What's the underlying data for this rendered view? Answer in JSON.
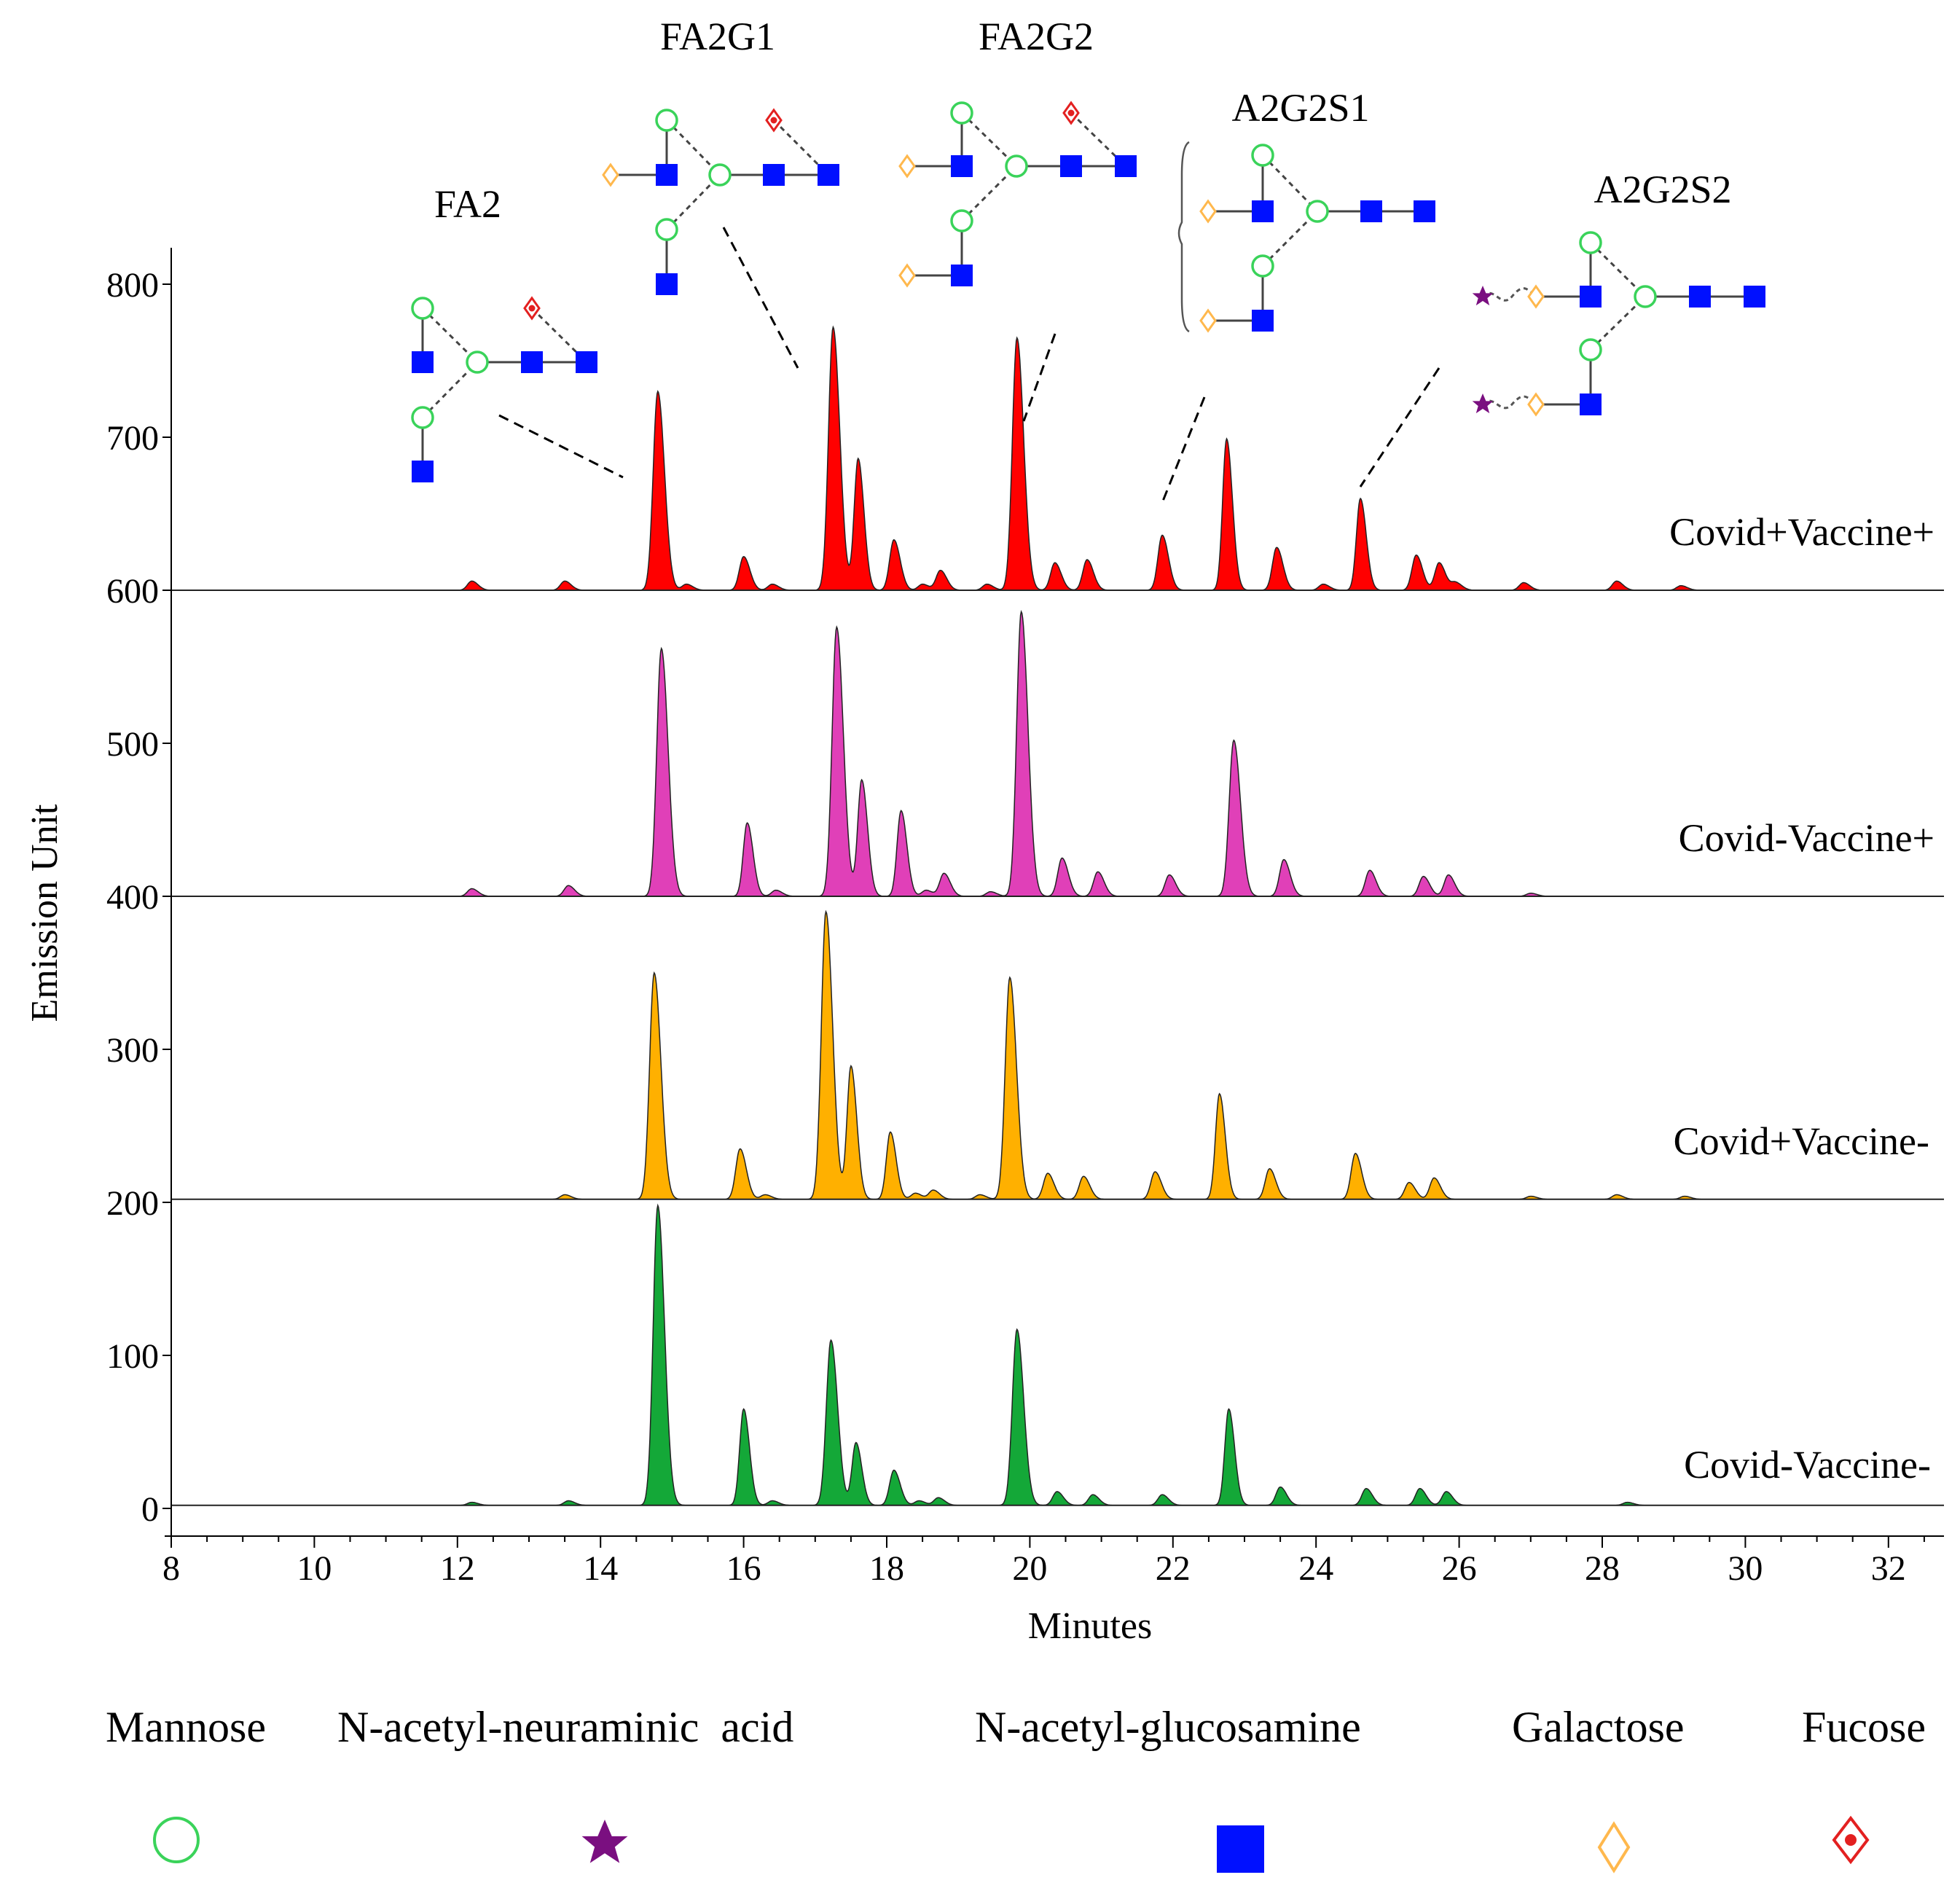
{
  "chart_data": {
    "type": "line",
    "subtype": "stacked-chromatogram",
    "xlabel": "Minutes",
    "ylabel": "Emission Unit",
    "xlim": [
      8,
      32.7
    ],
    "ylim": [
      0,
      800
    ],
    "x_ticks": [
      8,
      10,
      12,
      14,
      16,
      18,
      20,
      22,
      24,
      26,
      28,
      30,
      32
    ],
    "y_ticks": [
      0,
      100,
      200,
      300,
      400,
      500,
      600,
      700,
      800
    ],
    "series": [
      {
        "name": "Covid+Vaccine+",
        "baseline": 600,
        "color": "#ff0000",
        "peaks": [
          {
            "x": 12.2,
            "h": 6
          },
          {
            "x": 13.5,
            "h": 6
          },
          {
            "x": 14.8,
            "h": 130
          },
          {
            "x": 15.2,
            "h": 4
          },
          {
            "x": 16.0,
            "h": 22
          },
          {
            "x": 16.4,
            "h": 4
          },
          {
            "x": 17.25,
            "h": 172
          },
          {
            "x": 17.6,
            "h": 86
          },
          {
            "x": 18.1,
            "h": 33
          },
          {
            "x": 18.5,
            "h": 4
          },
          {
            "x": 18.75,
            "h": 13
          },
          {
            "x": 19.4,
            "h": 4
          },
          {
            "x": 19.82,
            "h": 165
          },
          {
            "x": 20.35,
            "h": 18
          },
          {
            "x": 20.8,
            "h": 20
          },
          {
            "x": 21.85,
            "h": 36
          },
          {
            "x": 22.75,
            "h": 99
          },
          {
            "x": 23.45,
            "h": 28
          },
          {
            "x": 24.1,
            "h": 4
          },
          {
            "x": 24.62,
            "h": 60
          },
          {
            "x": 25.4,
            "h": 23
          },
          {
            "x": 25.72,
            "h": 18
          },
          {
            "x": 25.95,
            "h": 5
          },
          {
            "x": 26.9,
            "h": 5
          },
          {
            "x": 28.2,
            "h": 6
          },
          {
            "x": 29.1,
            "h": 3
          }
        ]
      },
      {
        "name": "Covid-Vaccine+",
        "baseline": 400,
        "color": "#e040b8",
        "peaks": [
          {
            "x": 12.2,
            "h": 5
          },
          {
            "x": 13.55,
            "h": 7
          },
          {
            "x": 14.85,
            "h": 162
          },
          {
            "x": 16.05,
            "h": 48
          },
          {
            "x": 16.45,
            "h": 4
          },
          {
            "x": 17.3,
            "h": 176
          },
          {
            "x": 17.65,
            "h": 76
          },
          {
            "x": 18.2,
            "h": 56
          },
          {
            "x": 18.55,
            "h": 4
          },
          {
            "x": 18.8,
            "h": 15
          },
          {
            "x": 19.45,
            "h": 3
          },
          {
            "x": 19.88,
            "h": 186
          },
          {
            "x": 20.45,
            "h": 25
          },
          {
            "x": 20.95,
            "h": 16
          },
          {
            "x": 21.95,
            "h": 14
          },
          {
            "x": 22.85,
            "h": 102
          },
          {
            "x": 23.55,
            "h": 24
          },
          {
            "x": 24.75,
            "h": 17
          },
          {
            "x": 25.5,
            "h": 13
          },
          {
            "x": 25.85,
            "h": 14
          },
          {
            "x": 27.0,
            "h": 2
          }
        ]
      },
      {
        "name": "Covid+Vaccine-",
        "baseline": 202,
        "color": "#ffb000",
        "peaks": [
          {
            "x": 13.5,
            "h": 3
          },
          {
            "x": 14.75,
            "h": 148
          },
          {
            "x": 15.95,
            "h": 33
          },
          {
            "x": 16.3,
            "h": 3
          },
          {
            "x": 17.15,
            "h": 188
          },
          {
            "x": 17.5,
            "h": 87
          },
          {
            "x": 18.05,
            "h": 44
          },
          {
            "x": 18.4,
            "h": 4
          },
          {
            "x": 18.65,
            "h": 6
          },
          {
            "x": 19.3,
            "h": 3
          },
          {
            "x": 19.72,
            "h": 145
          },
          {
            "x": 20.25,
            "h": 17
          },
          {
            "x": 20.75,
            "h": 15
          },
          {
            "x": 21.75,
            "h": 18
          },
          {
            "x": 22.65,
            "h": 69
          },
          {
            "x": 23.35,
            "h": 20
          },
          {
            "x": 24.55,
            "h": 30
          },
          {
            "x": 25.3,
            "h": 11
          },
          {
            "x": 25.65,
            "h": 14
          },
          {
            "x": 27.0,
            "h": 2
          },
          {
            "x": 28.2,
            "h": 3
          },
          {
            "x": 29.15,
            "h": 2
          }
        ]
      },
      {
        "name": "Covid-Vaccine-",
        "baseline": 2,
        "color": "#14a838",
        "peaks": [
          {
            "x": 12.2,
            "h": 2
          },
          {
            "x": 13.55,
            "h": 3
          },
          {
            "x": 14.8,
            "h": 196
          },
          {
            "x": 16.0,
            "h": 63
          },
          {
            "x": 16.4,
            "h": 3
          },
          {
            "x": 17.22,
            "h": 108
          },
          {
            "x": 17.57,
            "h": 41
          },
          {
            "x": 18.1,
            "h": 23
          },
          {
            "x": 18.45,
            "h": 3
          },
          {
            "x": 18.72,
            "h": 5
          },
          {
            "x": 19.82,
            "h": 115
          },
          {
            "x": 20.38,
            "h": 9
          },
          {
            "x": 20.88,
            "h": 7
          },
          {
            "x": 21.85,
            "h": 7
          },
          {
            "x": 22.78,
            "h": 63
          },
          {
            "x": 23.5,
            "h": 12
          },
          {
            "x": 24.7,
            "h": 11
          },
          {
            "x": 25.45,
            "h": 11
          },
          {
            "x": 25.82,
            "h": 9
          },
          {
            "x": 28.35,
            "h": 2
          }
        ]
      }
    ],
    "annotations": [
      "FA2",
      "FA2G1",
      "FA2G2",
      "A2G2S1",
      "A2G2S2"
    ],
    "legend": [
      {
        "label": "Mannose",
        "symbol": "circle",
        "color": "#3ad35a"
      },
      {
        "label": "N-acetyl-neuraminic  acid",
        "symbol": "star",
        "color": "#7a0f80"
      },
      {
        "label": "N-acetyl-glucosamine",
        "symbol": "square",
        "color": "#0010ff"
      },
      {
        "label": "Galactose",
        "symbol": "diamond",
        "color": "#ffb84d"
      },
      {
        "label": "Fucose",
        "symbol": "fucose",
        "color": "#e32020"
      }
    ]
  }
}
